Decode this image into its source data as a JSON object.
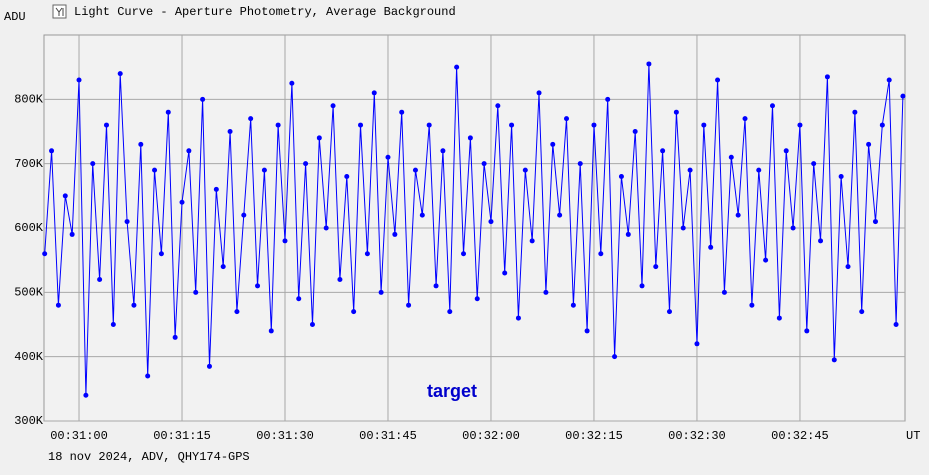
{
  "chart_data": {
    "type": "line",
    "title": "Light Curve - Aperture Photometry, Average Background",
    "y_label": "ADU",
    "x_label": "UT",
    "annotation": "target",
    "footer": "18 nov 2024, ADV, QHY174-GPS",
    "xlim": [
      1854.9,
      1980.3
    ],
    "xticks": [
      {
        "value": 1860,
        "label": "00:31:00"
      },
      {
        "value": 1875,
        "label": "00:31:15"
      },
      {
        "value": 1890,
        "label": "00:31:30"
      },
      {
        "value": 1905,
        "label": "00:31:45"
      },
      {
        "value": 1920,
        "label": "00:32:00"
      },
      {
        "value": 1935,
        "label": "00:32:15"
      },
      {
        "value": 1950,
        "label": "00:32:30"
      },
      {
        "value": 1965,
        "label": "00:32:45"
      }
    ],
    "ylim": [
      300000,
      900000
    ],
    "yticks": [
      {
        "value": 300000,
        "label": "300K"
      },
      {
        "value": 400000,
        "label": "400K"
      },
      {
        "value": 500000,
        "label": "500K"
      },
      {
        "value": 600000,
        "label": "600K"
      },
      {
        "value": 700000,
        "label": "700K"
      },
      {
        "value": 800000,
        "label": "800K"
      }
    ],
    "grid": true,
    "series": [
      {
        "name": "target",
        "color": "#0000ff",
        "x": [
          1855,
          1856,
          1857,
          1858,
          1859,
          1860,
          1861,
          1862,
          1863,
          1864,
          1865,
          1866,
          1867,
          1868,
          1869,
          1870,
          1871,
          1872,
          1873,
          1874,
          1875,
          1876,
          1877,
          1878,
          1879,
          1880,
          1881,
          1882,
          1883,
          1884,
          1885,
          1886,
          1887,
          1888,
          1889,
          1890,
          1891,
          1892,
          1893,
          1894,
          1895,
          1896,
          1897,
          1898,
          1899,
          1900,
          1901,
          1902,
          1903,
          1904,
          1905,
          1906,
          1907,
          1908,
          1909,
          1910,
          1911,
          1912,
          1913,
          1914,
          1915,
          1916,
          1917,
          1918,
          1919,
          1920,
          1921,
          1922,
          1923,
          1924,
          1925,
          1926,
          1927,
          1928,
          1929,
          1930,
          1931,
          1932,
          1933,
          1934,
          1935,
          1936,
          1937,
          1938,
          1939,
          1940,
          1941,
          1942,
          1943,
          1944,
          1945,
          1946,
          1947,
          1948,
          1949,
          1950,
          1951,
          1952,
          1953,
          1954,
          1955,
          1956,
          1957,
          1958,
          1959,
          1960,
          1961,
          1962,
          1963,
          1964,
          1965,
          1966,
          1967,
          1968,
          1969,
          1970,
          1971,
          1972,
          1973,
          1974,
          1975,
          1976,
          1977,
          1978,
          1979,
          1980
        ],
        "values": [
          560000,
          720000,
          480000,
          650000,
          590000,
          830000,
          340000,
          700000,
          520000,
          760000,
          450000,
          840000,
          610000,
          480000,
          730000,
          370000,
          690000,
          560000,
          780000,
          430000,
          640000,
          720000,
          500000,
          800000,
          385000,
          660000,
          540000,
          750000,
          470000,
          620000,
          770000,
          510000,
          690000,
          440000,
          760000,
          580000,
          825000,
          490000,
          700000,
          450000,
          740000,
          600000,
          790000,
          520000,
          680000,
          470000,
          760000,
          560000,
          810000,
          500000,
          710000,
          590000,
          780000,
          480000,
          690000,
          620000,
          760000,
          510000,
          720000,
          470000,
          850000,
          560000,
          740000,
          490000,
          700000,
          610000,
          790000,
          530000,
          760000,
          460000,
          690000,
          580000,
          810000,
          500000,
          730000,
          620000,
          770000,
          480000,
          700000,
          440000,
          760000,
          560000,
          800000,
          400000,
          680000,
          590000,
          750000,
          510000,
          855000,
          540000,
          720000,
          470000,
          780000,
          600000,
          690000,
          420000,
          760000,
          570000,
          830000,
          500000,
          710000,
          620000,
          770000,
          480000,
          690000,
          550000,
          790000,
          460000,
          720000,
          600000,
          760000,
          440000,
          700000,
          580000,
          835000,
          395000,
          680000,
          540000,
          780000,
          470000,
          730000,
          610000,
          760000,
          830000,
          450000,
          805000
        ]
      }
    ]
  }
}
